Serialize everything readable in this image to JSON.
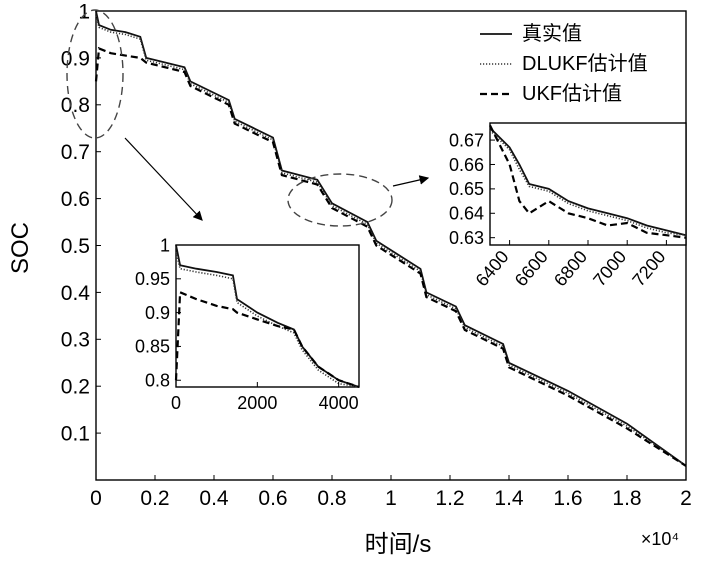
{
  "chart_data": [
    {
      "type": "line",
      "xlabel": "时间/s",
      "ylabel": "SOC",
      "x_scale_note": "×10⁴",
      "xlim": [
        0,
        2
      ],
      "ylim": [
        0,
        1
      ],
      "xticks": [
        "0",
        "0.2",
        "0.4",
        "0.6",
        "0.8",
        "1",
        "1.2",
        "1.4",
        "1.6",
        "1.8",
        "2"
      ],
      "yticks": [
        "0.1",
        "0.2",
        "0.3",
        "0.4",
        "0.5",
        "0.6",
        "0.7",
        "0.8",
        "0.9",
        "1"
      ],
      "legend_position": "top-right",
      "series": [
        {
          "name": "真实值",
          "x": [
            0,
            0.01,
            0.05,
            0.1,
            0.15,
            0.17,
            0.3,
            0.32,
            0.45,
            0.47,
            0.6,
            0.63,
            0.75,
            0.8,
            0.92,
            0.95,
            1.1,
            1.12,
            1.22,
            1.25,
            1.38,
            1.4,
            1.6,
            1.8,
            2.0
          ],
          "y": [
            1.0,
            0.97,
            0.96,
            0.955,
            0.945,
            0.9,
            0.88,
            0.85,
            0.81,
            0.77,
            0.73,
            0.66,
            0.64,
            0.59,
            0.55,
            0.51,
            0.45,
            0.4,
            0.37,
            0.33,
            0.29,
            0.25,
            0.19,
            0.12,
            0.03
          ]
        },
        {
          "name": "DLUKF估计值",
          "x": [
            0,
            0.01,
            0.05,
            0.1,
            0.15,
            0.17,
            0.3,
            0.32,
            0.45,
            0.47,
            0.6,
            0.63,
            0.75,
            0.8,
            0.92,
            0.95,
            1.1,
            1.12,
            1.22,
            1.25,
            1.38,
            1.4,
            1.6,
            1.8,
            2.0
          ],
          "y": [
            0.99,
            0.965,
            0.955,
            0.95,
            0.94,
            0.895,
            0.875,
            0.845,
            0.805,
            0.765,
            0.725,
            0.655,
            0.635,
            0.585,
            0.545,
            0.505,
            0.445,
            0.395,
            0.365,
            0.325,
            0.285,
            0.245,
            0.185,
            0.115,
            0.03
          ]
        },
        {
          "name": "UKF估计值",
          "x": [
            0,
            0.01,
            0.05,
            0.1,
            0.15,
            0.17,
            0.3,
            0.32,
            0.45,
            0.47,
            0.6,
            0.63,
            0.75,
            0.8,
            0.92,
            0.95,
            1.1,
            1.12,
            1.22,
            1.25,
            1.38,
            1.4,
            1.6,
            1.8,
            2.0
          ],
          "y": [
            0.85,
            0.92,
            0.91,
            0.905,
            0.9,
            0.89,
            0.87,
            0.84,
            0.8,
            0.76,
            0.72,
            0.65,
            0.63,
            0.58,
            0.54,
            0.5,
            0.44,
            0.39,
            0.36,
            0.32,
            0.28,
            0.24,
            0.18,
            0.11,
            0.03
          ]
        }
      ]
    },
    {
      "type": "line",
      "inset": "early-range",
      "xlim": [
        0,
        4500
      ],
      "ylim": [
        0.79,
        1.0
      ],
      "xticks": [
        "0",
        "2000",
        "4000"
      ],
      "yticks": [
        "0.8",
        "0.85",
        "0.9",
        "0.95",
        "1"
      ],
      "series": [
        {
          "name": "真实值",
          "x": [
            0,
            100,
            500,
            1000,
            1400,
            1500,
            2000,
            2500,
            2900,
            3100,
            3500,
            4000,
            4500
          ],
          "y": [
            1.0,
            0.97,
            0.965,
            0.96,
            0.955,
            0.92,
            0.9,
            0.885,
            0.875,
            0.85,
            0.82,
            0.8,
            0.79
          ]
        },
        {
          "name": "DLUKF估计值",
          "x": [
            0,
            100,
            500,
            1000,
            1400,
            1500,
            2000,
            2500,
            2900,
            3100,
            3500,
            4000,
            4500
          ],
          "y": [
            0.99,
            0.965,
            0.96,
            0.955,
            0.95,
            0.915,
            0.895,
            0.88,
            0.87,
            0.845,
            0.815,
            0.795,
            0.79
          ]
        },
        {
          "name": "UKF估计值",
          "x": [
            0,
            100,
            500,
            1000,
            1400,
            1500,
            2000,
            2500,
            2900,
            3100,
            3500,
            4000,
            4500
          ],
          "y": [
            0.8,
            0.93,
            0.92,
            0.91,
            0.905,
            0.9,
            0.89,
            0.88,
            0.875,
            0.85,
            0.82,
            0.8,
            0.79
          ]
        }
      ]
    },
    {
      "type": "line",
      "inset": "mid-range",
      "xlim": [
        6300,
        7300
      ],
      "ylim": [
        0.627,
        0.677
      ],
      "xticks": [
        "6400",
        "6600",
        "6800",
        "7000",
        "7200"
      ],
      "yticks": [
        "0.63",
        "0.64",
        "0.65",
        "0.66",
        "0.67"
      ],
      "series": [
        {
          "name": "真实值",
          "x": [
            6300,
            6350,
            6400,
            6450,
            6500,
            6600,
            6700,
            6800,
            6900,
            7000,
            7100,
            7200,
            7300
          ],
          "y": [
            0.675,
            0.671,
            0.667,
            0.66,
            0.652,
            0.65,
            0.645,
            0.642,
            0.64,
            0.638,
            0.635,
            0.633,
            0.631
          ]
        },
        {
          "name": "DLUKF估计值",
          "x": [
            6300,
            6350,
            6400,
            6450,
            6500,
            6600,
            6700,
            6800,
            6900,
            7000,
            7100,
            7200,
            7300
          ],
          "y": [
            0.674,
            0.67,
            0.666,
            0.658,
            0.651,
            0.649,
            0.644,
            0.641,
            0.639,
            0.637,
            0.634,
            0.632,
            0.631
          ]
        },
        {
          "name": "UKF估计值",
          "x": [
            6300,
            6350,
            6400,
            6450,
            6500,
            6600,
            6700,
            6800,
            6900,
            7000,
            7100,
            7200,
            7300
          ],
          "y": [
            0.676,
            0.668,
            0.66,
            0.645,
            0.64,
            0.645,
            0.64,
            0.638,
            0.635,
            0.636,
            0.632,
            0.631,
            0.63
          ]
        }
      ]
    }
  ]
}
